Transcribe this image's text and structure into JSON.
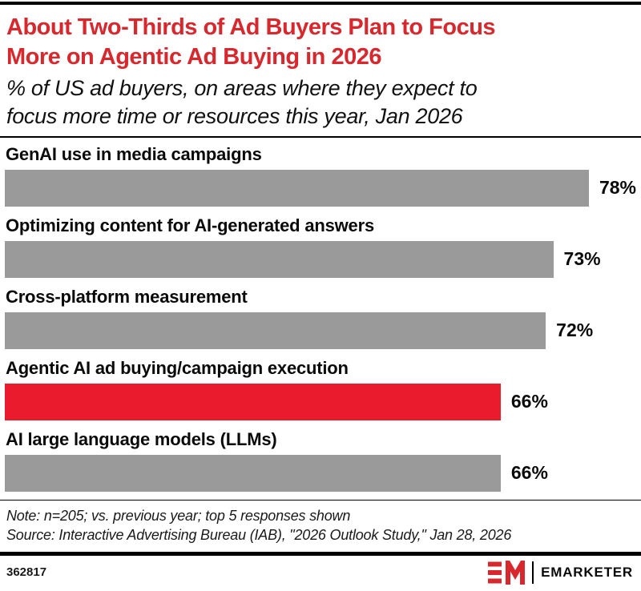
{
  "header": {
    "title_line1": "About Two-Thirds of Ad Buyers Plan to Focus",
    "title_line2": "More on Agentic Ad Buying in 2026",
    "subtitle_line1": "% of US ad buyers, on areas where they expect to",
    "subtitle_line2": "focus more time or resources this year, Jan 2026"
  },
  "chart_data": {
    "type": "bar",
    "orientation": "horizontal",
    "title": "About Two-Thirds of Ad Buyers Plan to Focus More on Agentic Ad Buying in 2026",
    "subtitle": "% of US ad buyers, on areas where they expect to focus more time or resources this year, Jan 2026",
    "categories": [
      "GenAI use in media campaigns",
      "Optimizing content for AI-generated answers",
      "Cross-platform measurement",
      "Agentic AI ad buying/campaign execution",
      "AI large language models (LLMs)"
    ],
    "values": [
      78,
      73,
      72,
      66,
      66
    ],
    "value_labels": [
      "78%",
      "73%",
      "72%",
      "66%",
      "66%"
    ],
    "highlight_index": 3,
    "colors": {
      "bar_default": "#9a9a9a",
      "bar_highlight": "#ea1b2d",
      "title_red": "#d7282e"
    },
    "layout": {
      "grid": false,
      "legend": false,
      "value_label_position": "right-of-bar",
      "bar_width_pct_per_unit": 1.19
    }
  },
  "footnote": {
    "note": "Note: n=205; vs. previous year; top 5 responses shown",
    "source": "Source: Interactive Advertising Bureau (IAB), \"2026 Outlook Study,\" Jan 28, 2026"
  },
  "footer": {
    "chart_number": "362817",
    "brand": "EMARKETER"
  }
}
